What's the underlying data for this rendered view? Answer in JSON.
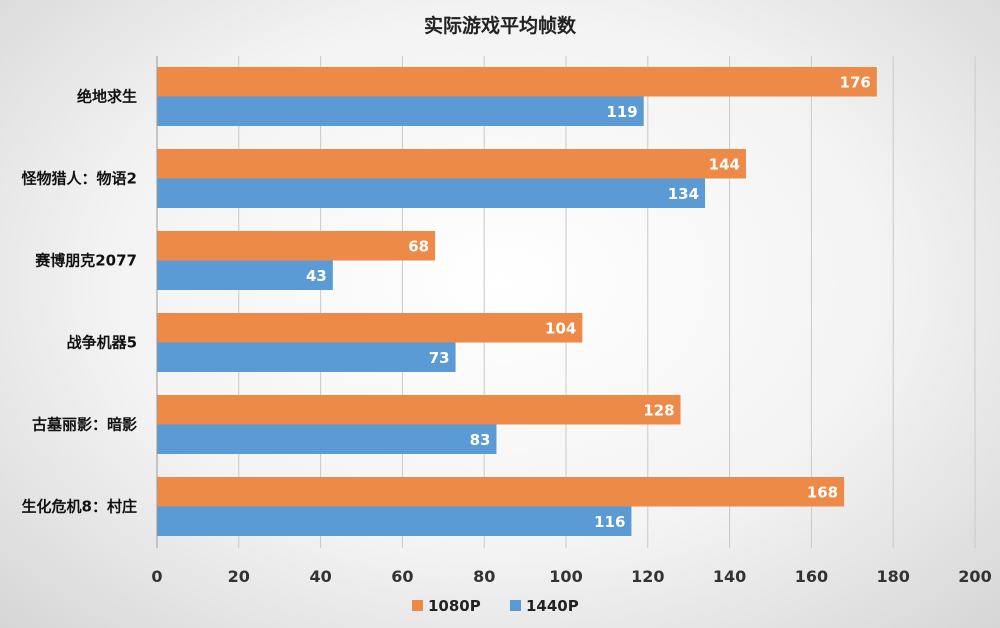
{
  "chart_data": {
    "type": "bar",
    "orientation": "horizontal",
    "title": "实际游戏平均帧数",
    "categories": [
      "绝地求生",
      "怪物猎人：物语2",
      "赛博朋克2077",
      "战争机器5",
      "古墓丽影：暗影",
      "生化危机8：村庄"
    ],
    "series": [
      {
        "name": "1080P",
        "color": "#ed8a47",
        "values": [
          176,
          144,
          68,
          104,
          128,
          168
        ]
      },
      {
        "name": "1440P",
        "color": "#5b9bd5",
        "values": [
          119,
          134,
          43,
          73,
          83,
          116
        ]
      }
    ],
    "xlim": [
      0,
      200
    ],
    "xticks": [
      0,
      20,
      40,
      60,
      80,
      100,
      120,
      140,
      160,
      180,
      200
    ],
    "grid": "vertical",
    "legend_position": "bottom"
  }
}
